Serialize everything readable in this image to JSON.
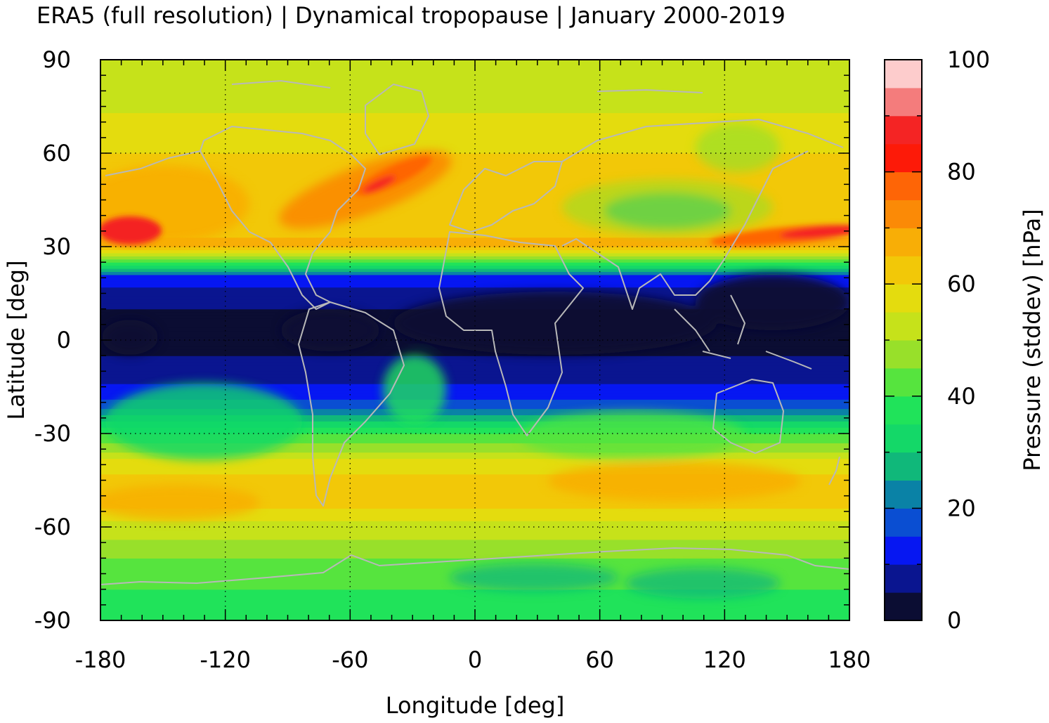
{
  "chart_data": {
    "type": "heatmap",
    "title": "ERA5 (full resolution) | Dynamical tropopause | January 2000-2019",
    "xlabel": "Longitude [deg]",
    "ylabel": "Latitude [deg]",
    "xlim": [
      -180,
      180
    ],
    "ylim": [
      -90,
      90
    ],
    "x_ticks": [
      -180,
      -120,
      -60,
      0,
      60,
      120,
      180
    ],
    "y_ticks": [
      90,
      60,
      30,
      0,
      -30,
      -60,
      -90
    ],
    "x_tick_labels": [
      "-180",
      "-120",
      "-60",
      "0",
      "60",
      "120",
      "180"
    ],
    "y_tick_labels": [
      "90",
      "60",
      "30",
      "0",
      "-30",
      "-60",
      "-90"
    ],
    "grid": true,
    "colorbar": {
      "label": "Pressure (stddev) [hPa]",
      "range": [
        0,
        100
      ],
      "ticks": [
        0,
        20,
        40,
        60,
        80,
        100
      ],
      "tick_labels": [
        "0",
        "20",
        "40",
        "60",
        "80",
        "100"
      ],
      "levels": [
        {
          "from": 0,
          "to": 5,
          "color": "#0b0d33"
        },
        {
          "from": 5,
          "to": 10,
          "color": "#0a1590"
        },
        {
          "from": 10,
          "to": 15,
          "color": "#0617f2"
        },
        {
          "from": 15,
          "to": 20,
          "color": "#0a4ed2"
        },
        {
          "from": 20,
          "to": 25,
          "color": "#0a82a6"
        },
        {
          "from": 25,
          "to": 30,
          "color": "#10b87a"
        },
        {
          "from": 30,
          "to": 35,
          "color": "#14d868"
        },
        {
          "from": 35,
          "to": 40,
          "color": "#20e35a"
        },
        {
          "from": 40,
          "to": 45,
          "color": "#56e43e"
        },
        {
          "from": 45,
          "to": 50,
          "color": "#98e02a"
        },
        {
          "from": 50,
          "to": 55,
          "color": "#c6e21a"
        },
        {
          "from": 55,
          "to": 60,
          "color": "#e4dc0e"
        },
        {
          "from": 60,
          "to": 65,
          "color": "#f2c808"
        },
        {
          "from": 65,
          "to": 70,
          "color": "#f8ae06"
        },
        {
          "from": 70,
          "to": 75,
          "color": "#fb8a06"
        },
        {
          "from": 75,
          "to": 80,
          "color": "#fe6506"
        },
        {
          "from": 80,
          "to": 85,
          "color": "#fd1a08"
        },
        {
          "from": 85,
          "to": 90,
          "color": "#f42424"
        },
        {
          "from": 90,
          "to": 95,
          "color": "#f47c7c"
        },
        {
          "from": 95,
          "to": 100,
          "color": "#fdcccc"
        }
      ]
    },
    "zonal_profile": {
      "lat": [
        -90,
        -80,
        -70,
        -60,
        -50,
        -40,
        -30,
        -20,
        -10,
        0,
        10,
        20,
        30,
        40,
        50,
        60,
        70,
        80,
        90
      ],
      "value": [
        35,
        40,
        45,
        53,
        64,
        58,
        40,
        16,
        6,
        4,
        5,
        12,
        66,
        62,
        62,
        60,
        56,
        52,
        50
      ]
    },
    "coastline_color": "#b8b8b8"
  }
}
